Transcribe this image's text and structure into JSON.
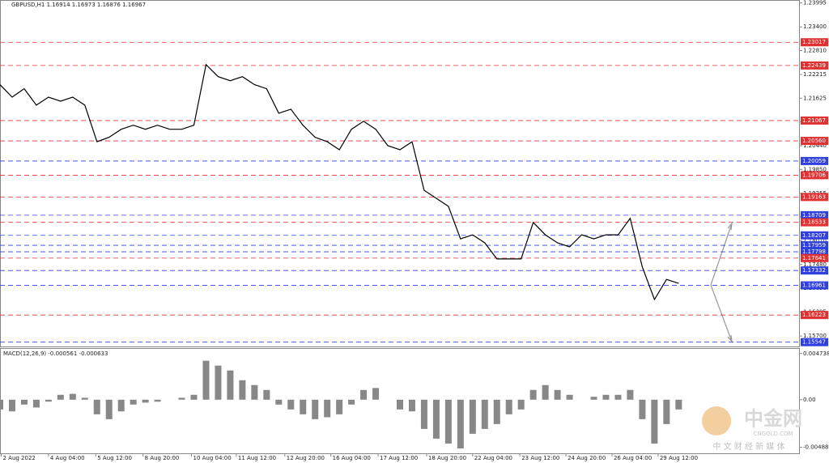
{
  "chart_data": [
    {
      "type": "line",
      "title": "GBPUSD,H1  1.16914 1.16973 1.16876 1.16967",
      "color": "#000000",
      "x": [
        0,
        1,
        2,
        3,
        4,
        5,
        6,
        7,
        8,
        9,
        10,
        11,
        12,
        13,
        14,
        15,
        16,
        17,
        18,
        19,
        20,
        21,
        22,
        23,
        24,
        25,
        26,
        27,
        28,
        29,
        30,
        31,
        32,
        33,
        34,
        35,
        36,
        37,
        38,
        39,
        40,
        41,
        42,
        43,
        44,
        45,
        46,
        47,
        48,
        49,
        50,
        51,
        52,
        53,
        54,
        55,
        56
      ],
      "values": [
        1.2196,
        1.2165,
        1.2186,
        1.2145,
        1.2165,
        1.2155,
        1.2165,
        1.2145,
        1.2054,
        1.2065,
        1.2085,
        1.2095,
        1.2085,
        1.2095,
        1.2085,
        1.2085,
        1.2095,
        1.2246,
        1.2216,
        1.2206,
        1.2216,
        1.2196,
        1.2186,
        1.2125,
        1.2135,
        1.2095,
        1.2065,
        1.2054,
        1.2034,
        1.2085,
        1.2105,
        1.2085,
        1.2044,
        1.2034,
        1.2054,
        1.1933,
        1.1913,
        1.1893,
        1.1812,
        1.1822,
        1.1802,
        1.1762,
        1.1762,
        1.1762,
        1.1853,
        1.1822,
        1.1802,
        1.1792,
        1.1822,
        1.1812,
        1.1822,
        1.1822,
        1.1863,
        1.1742,
        1.1661,
        1.1711,
        1.1701
      ],
      "xlim": [
        0,
        66
      ],
      "ylim": [
        1.1544,
        1.2407
      ],
      "xticks": [
        {
          "value": 0.1,
          "label": "2 Aug 2022"
        },
        {
          "value": 4,
          "label": "4 Aug 04:00"
        },
        {
          "value": 7.9,
          "label": "5 Aug 12:00"
        },
        {
          "value": 11.8,
          "label": "8 Aug 20:00"
        },
        {
          "value": 15.8,
          "label": "10 Aug 04:00"
        },
        {
          "value": 19.5,
          "label": "11 Aug 12:00"
        },
        {
          "value": 23.5,
          "label": "12 Aug 20:00"
        },
        {
          "value": 27.3,
          "label": "16 Aug 04:00"
        },
        {
          "value": 31.2,
          "label": "17 Aug 12:00"
        },
        {
          "value": 35.2,
          "label": "18 Aug 20:00"
        },
        {
          "value": 39,
          "label": "22 Aug 04:00"
        },
        {
          "value": 42.9,
          "label": "23 Aug 12:00"
        },
        {
          "value": 46.7,
          "label": "24 Aug 20:00"
        },
        {
          "value": 50.5,
          "label": "26 Aug 04:00"
        },
        {
          "value": 54.3,
          "label": "29 Aug 12:00"
        }
      ],
      "yticks": [
        1.23995,
        {
          "value": 1.234,
          "label": "1.23400"
        },
        {
          "value": 1.2281,
          "label": "1.22810"
        },
        1.22215,
        1.21625,
        1.21035,
        {
          "value": 1.2044,
          "label": "1.20440"
        },
        {
          "value": 1.1985,
          "label": "1.19850"
        },
        1.19255,
        1.18665,
        {
          "value": 1.1807,
          "label": "1.18070"
        },
        {
          "value": 1.1748,
          "label": "1.17480"
        },
        {
          "value": 1.1689,
          "label": "1.16890"
        },
        1.16295,
        {
          "value": 1.157,
          "label": "1.15700"
        }
      ],
      "levels": [
        {
          "value": 1.23017,
          "color": "#e03030"
        },
        {
          "value": 1.22439,
          "color": "#e03030"
        },
        {
          "value": 1.21067,
          "color": "#e03030"
        },
        {
          "value": 1.2056,
          "label": "1.20560",
          "color": "#e03030"
        },
        {
          "value": 1.20059,
          "color": "#3040e0"
        },
        {
          "value": 1.19706,
          "color": "#e03030"
        },
        {
          "value": 1.19163,
          "color": "#e03030"
        },
        {
          "value": 1.18709,
          "color": "#3040e0"
        },
        {
          "value": 1.18533,
          "color": "#e03030"
        },
        {
          "value": 1.18207,
          "color": "#3040e0"
        },
        {
          "value": 1.17959,
          "color": "#3040e0"
        },
        {
          "value": 1.17798,
          "color": "#3040e0"
        },
        {
          "value": 1.17641,
          "color": "#e03030"
        },
        {
          "value": 1.17332,
          "color": "#3040e0"
        },
        {
          "value": 1.16961,
          "color": "#3040e0"
        },
        {
          "value": 1.16223,
          "color": "#e03030"
        },
        {
          "value": 1.15547,
          "color": "#3040e0"
        }
      ]
    },
    {
      "type": "bar",
      "title": "MACD(12,26,9) -0.000561 -0.000633",
      "color": "#888888",
      "values": [
        -0.001,
        -0.0012,
        -0.0005,
        -0.0008,
        -0.0002,
        0.0005,
        0.0006,
        0.0002,
        -0.0015,
        -0.002,
        -0.0012,
        -0.0005,
        -0.0003,
        -0.0002,
        0,
        0.0002,
        0.0005,
        0.004,
        0.0035,
        0.003,
        0.002,
        0.0015,
        0.001,
        -0.0005,
        -0.001,
        -0.0015,
        -0.002,
        -0.0018,
        -0.0015,
        -0.0005,
        0.001,
        0.0012,
        0,
        -0.001,
        -0.0012,
        -0.003,
        -0.004,
        -0.0045,
        -0.005,
        -0.0035,
        -0.003,
        -0.0025,
        -0.0015,
        -0.001,
        0.001,
        0.0015,
        0.001,
        0.0005,
        0,
        0.0003,
        0.0005,
        0.0005,
        0.001,
        -0.002,
        -0.0045,
        -0.0025,
        -0.001
      ],
      "ylim": [
        -0.0055,
        0.0053
      ],
      "yticks": [
        0.004738,
        {
          "value": 0,
          "label": "0.00"
        },
        -0.004889
      ]
    }
  ],
  "watermark": {
    "name": "中金网",
    "url": "CNGOLD.COM",
    "tagline": "中 文 财 经 新 媒 体"
  }
}
